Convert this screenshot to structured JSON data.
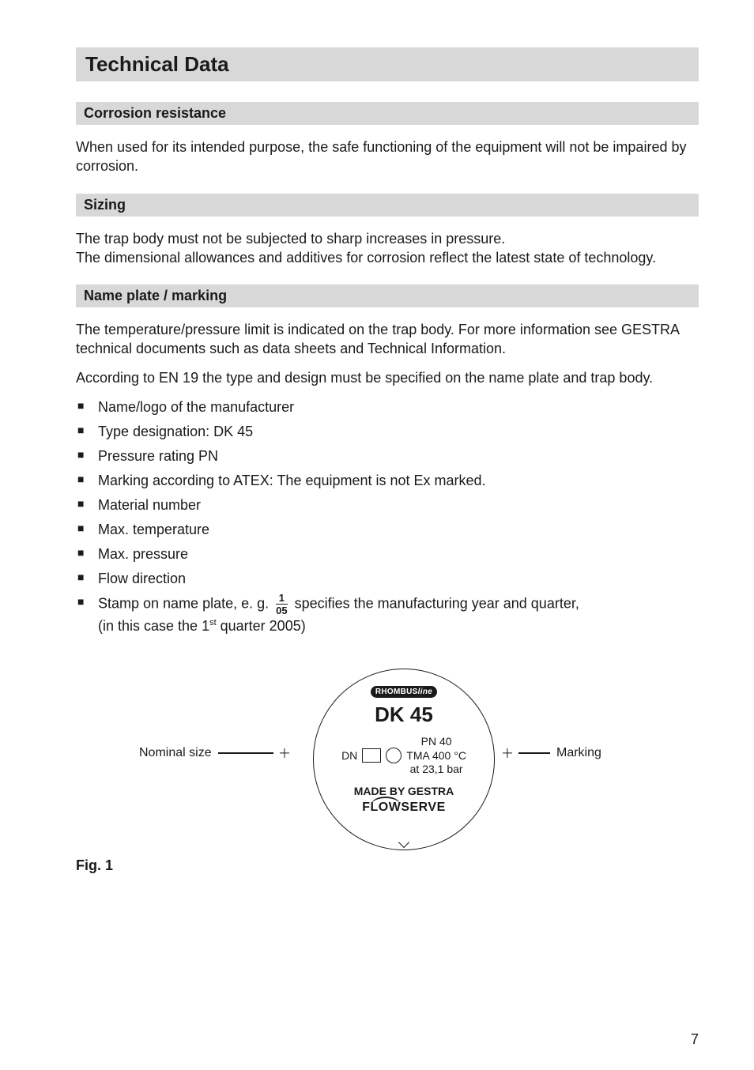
{
  "page_number": "7",
  "title": "Technical Data",
  "sections": {
    "corrosion": {
      "heading": "Corrosion resistance",
      "para": "When used for its intended purpose, the safe functioning of the equipment will not be impaired by corrosion."
    },
    "sizing": {
      "heading": "Sizing",
      "para1": "The trap body must not be subjected to sharp increases in pressure.",
      "para2": "The dimensional allowances and additives for corrosion reflect the latest state of technology."
    },
    "nameplate": {
      "heading": "Name plate / marking",
      "para1": "The temperature/pressure limit is indicated on the trap body. For more information see GESTRA technical documents such as data sheets and Technical Information.",
      "para2": "According to EN 19 the type and design must be specified on the name plate and trap body.",
      "bullets": [
        "Name/logo of the manufacturer",
        "Type designation: DK 45",
        "Pressure rating PN",
        "Marking according to ATEX: The equipment is not Ex marked.",
        "Material number",
        "Max. temperature",
        "Max. pressure",
        "Flow direction"
      ],
      "stamp_prefix": "Stamp on name plate, e. g. ",
      "stamp_num": "1",
      "stamp_den": "05",
      "stamp_suffix": " specifies the manufacturing year and quarter,",
      "stamp_line2a": "(in this case the 1",
      "stamp_ord": "st",
      "stamp_line2b": " quarter 2005)"
    }
  },
  "figure": {
    "label": "Fig. 1",
    "left_label": "Nominal size",
    "right_label": "Marking",
    "plate": {
      "rhombus_prefix": "RHOMBUS",
      "rhombus_suffix": "line",
      "model": "DK 45",
      "dn_label": "DN",
      "pn": "PN 40",
      "tma": "TMA 400 °C",
      "at": "at 23,1 bar",
      "made_by": "MADE BY GESTRA",
      "flowserve": "FLOWSERVE"
    }
  },
  "style": {
    "heading_bg": "#d8d8d8",
    "text_color": "#1a1a1a",
    "page_bg": "#ffffff"
  }
}
